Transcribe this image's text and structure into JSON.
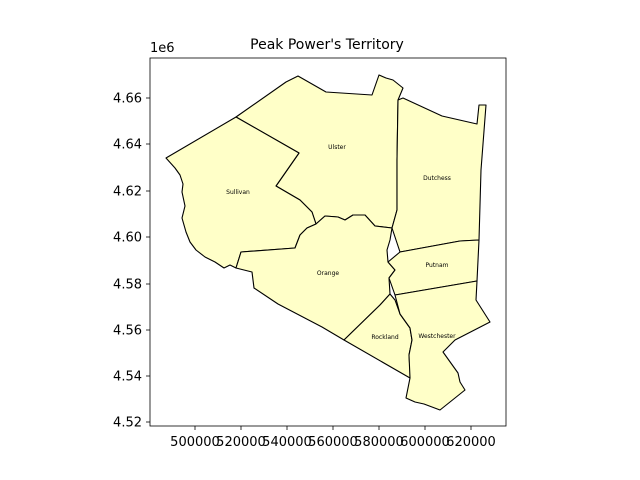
{
  "title": "Peak Power's Territory",
  "y_offset_label": "1e6",
  "fill_color": "#ffffc8",
  "edge_color": "#000000",
  "x_ticks": [
    "500000",
    "520000",
    "540000",
    "560000",
    "580000",
    "600000",
    "620000"
  ],
  "y_ticks": [
    "4.52",
    "4.54",
    "4.56",
    "4.58",
    "4.60",
    "4.62",
    "4.64",
    "4.66"
  ],
  "counties": [
    {
      "name": "Ulster"
    },
    {
      "name": "Sullivan"
    },
    {
      "name": "Dutchess"
    },
    {
      "name": "Orange"
    },
    {
      "name": "Putnam"
    },
    {
      "name": "Rockland"
    },
    {
      "name": "Westchester"
    }
  ]
}
